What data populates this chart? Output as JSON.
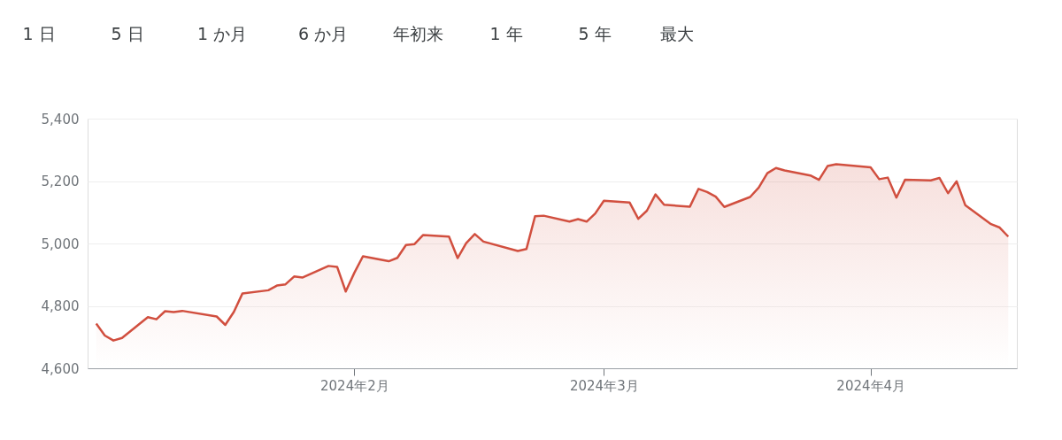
{
  "chart_data": {
    "type": "area",
    "color": "#d14f3f",
    "annotations": [
      "1 日",
      "5 日",
      "1 か月",
      "6 か月",
      "年初来",
      "1 年",
      "5 年",
      "最大"
    ],
    "x": [
      "2024-01-02",
      "2024-01-03",
      "2024-01-04",
      "2024-01-05",
      "2024-01-08",
      "2024-01-09",
      "2024-01-10",
      "2024-01-11",
      "2024-01-12",
      "2024-01-16",
      "2024-01-17",
      "2024-01-18",
      "2024-01-19",
      "2024-01-22",
      "2024-01-23",
      "2024-01-24",
      "2024-01-25",
      "2024-01-26",
      "2024-01-29",
      "2024-01-30",
      "2024-01-31",
      "2024-02-01",
      "2024-02-02",
      "2024-02-05",
      "2024-02-06",
      "2024-02-07",
      "2024-02-08",
      "2024-02-09",
      "2024-02-12",
      "2024-02-13",
      "2024-02-14",
      "2024-02-15",
      "2024-02-16",
      "2024-02-20",
      "2024-02-21",
      "2024-02-22",
      "2024-02-23",
      "2024-02-26",
      "2024-02-27",
      "2024-02-28",
      "2024-02-29",
      "2024-03-01",
      "2024-03-04",
      "2024-03-05",
      "2024-03-06",
      "2024-03-07",
      "2024-03-08",
      "2024-03-11",
      "2024-03-12",
      "2024-03-13",
      "2024-03-14",
      "2024-03-15",
      "2024-03-18",
      "2024-03-19",
      "2024-03-20",
      "2024-03-21",
      "2024-03-22",
      "2024-03-25",
      "2024-03-26",
      "2024-03-27",
      "2024-03-28",
      "2024-04-01",
      "2024-04-02",
      "2024-04-03",
      "2024-04-04",
      "2024-04-05",
      "2024-04-08",
      "2024-04-09",
      "2024-04-10",
      "2024-04-11",
      "2024-04-12",
      "2024-04-15",
      "2024-04-16",
      "2024-04-17"
    ],
    "values": [
      4743,
      4705,
      4689,
      4697,
      4764,
      4757,
      4783,
      4780,
      4784,
      4766,
      4739,
      4781,
      4840,
      4850,
      4865,
      4869,
      4894,
      4891,
      4928,
      4925,
      4846,
      4906,
      4959,
      4943,
      4954,
      4995,
      4998,
      5027,
      5022,
      4953,
      5001,
      5030,
      5006,
      4976,
      4982,
      5087,
      5089,
      5070,
      5078,
      5070,
      5096,
      5137,
      5131,
      5079,
      5105,
      5157,
      5124,
      5118,
      5175,
      5165,
      5150,
      5117,
      5149,
      5179,
      5225,
      5242,
      5234,
      5218,
      5204,
      5248,
      5254,
      5244,
      5206,
      5211,
      5147,
      5204,
      5202,
      5210,
      5161,
      5199,
      5123,
      5062,
      5051,
      5022
    ],
    "xlim": [
      "2024-01-01",
      "2024-04-18"
    ],
    "xticks": [
      {
        "value": "2024-02-01",
        "label": "2024年2月"
      },
      {
        "value": "2024-03-01",
        "label": "2024年3月"
      },
      {
        "value": "2024-04-01",
        "label": "2024年4月"
      }
    ],
    "ylim": [
      4600,
      5400
    ],
    "yticks": [
      {
        "value": 4600,
        "label": "4,600"
      },
      {
        "value": 4800,
        "label": "4,800"
      },
      {
        "value": 5000,
        "label": "5,000"
      },
      {
        "value": 5200,
        "label": "5,200"
      },
      {
        "value": 5400,
        "label": "5,400"
      }
    ],
    "grid": "y"
  }
}
